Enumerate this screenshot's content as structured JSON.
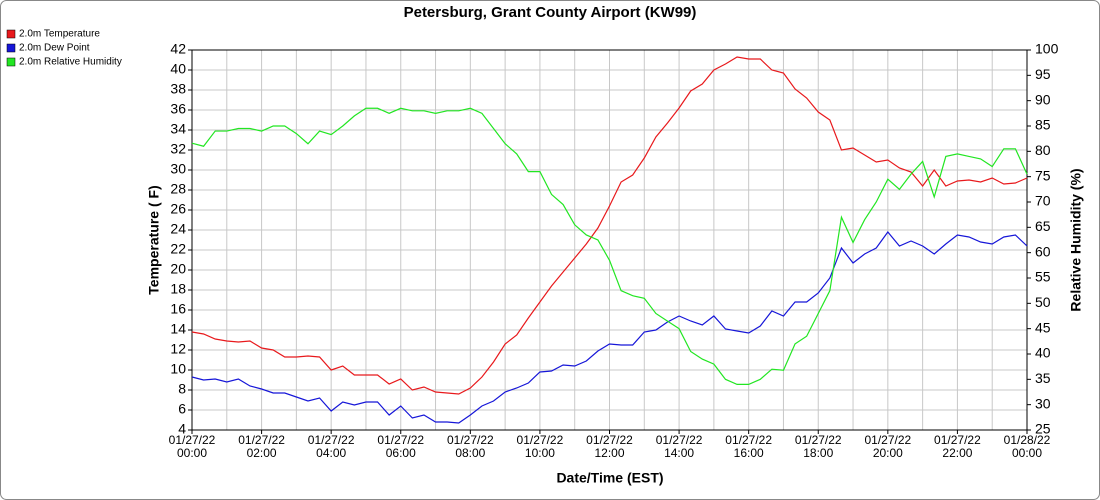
{
  "chart_data": {
    "type": "line",
    "title": "Petersburg, Grant County Airport (KW99)",
    "xlabel": "Date/Time (EST)",
    "ylabel": "Temperature ( F)",
    "y2label": "Relative Humidity (%)",
    "x": [
      "01/27/22 00:00",
      "01/27/22 00:20",
      "01/27/22 00:40",
      "01/27/22 01:00",
      "01/27/22 01:20",
      "01/27/22 01:40",
      "01/27/22 02:00",
      "01/27/22 02:20",
      "01/27/22 02:40",
      "01/27/22 03:00",
      "01/27/22 03:20",
      "01/27/22 03:40",
      "01/27/22 04:00",
      "01/27/22 04:20",
      "01/27/22 04:40",
      "01/27/22 05:00",
      "01/27/22 05:20",
      "01/27/22 05:40",
      "01/27/22 06:00",
      "01/27/22 06:20",
      "01/27/22 06:40",
      "01/27/22 07:00",
      "01/27/22 07:20",
      "01/27/22 07:40",
      "01/27/22 08:00",
      "01/27/22 08:20",
      "01/27/22 08:40",
      "01/27/22 09:00",
      "01/27/22 09:20",
      "01/27/22 09:40",
      "01/27/22 10:00",
      "01/27/22 10:20",
      "01/27/22 10:40",
      "01/27/22 11:00",
      "01/27/22 11:20",
      "01/27/22 11:40",
      "01/27/22 12:00",
      "01/27/22 12:20",
      "01/27/22 12:40",
      "01/27/22 13:00",
      "01/27/22 13:20",
      "01/27/22 13:40",
      "01/27/22 14:00",
      "01/27/22 14:20",
      "01/27/22 14:40",
      "01/27/22 15:00",
      "01/27/22 15:20",
      "01/27/22 15:40",
      "01/27/22 16:00",
      "01/27/22 16:20",
      "01/27/22 16:40",
      "01/27/22 17:00",
      "01/27/22 17:20",
      "01/27/22 17:40",
      "01/27/22 18:00",
      "01/27/22 18:20",
      "01/27/22 18:40",
      "01/27/22 19:00",
      "01/27/22 19:20",
      "01/27/22 19:40",
      "01/27/22 20:00",
      "01/27/22 20:20",
      "01/27/22 20:40",
      "01/27/22 21:00",
      "01/27/22 21:20",
      "01/27/22 21:40",
      "01/27/22 22:00",
      "01/27/22 22:20",
      "01/27/22 22:40",
      "01/27/22 23:00",
      "01/27/22 23:20",
      "01/27/22 23:40",
      "01/28/22 00:00"
    ],
    "series": [
      {
        "name": "2.0m Temperature",
        "color": "#e8191c",
        "axis": "y",
        "values": [
          13.8,
          13.6,
          13.1,
          12.9,
          12.8,
          12.9,
          12.2,
          12.0,
          11.3,
          11.3,
          11.4,
          11.3,
          10.0,
          10.4,
          9.5,
          9.5,
          9.5,
          8.6,
          9.1,
          8.0,
          8.3,
          7.8,
          7.7,
          7.6,
          8.2,
          9.3,
          10.8,
          12.6,
          13.5,
          15.2,
          16.8,
          18.4,
          19.8,
          21.2,
          22.6,
          24.2,
          26.4,
          28.8,
          29.5,
          31.2,
          33.3,
          34.7,
          36.2,
          37.9,
          38.6,
          40.0,
          40.6,
          41.3,
          41.1,
          41.1,
          40.0,
          39.7,
          38.1,
          37.2,
          35.8,
          35.0,
          32.0,
          32.2,
          31.5,
          30.8,
          31.0,
          30.2,
          29.8,
          28.4,
          30.0,
          28.4,
          28.9,
          29.0,
          28.8,
          29.2,
          28.6,
          28.7,
          29.2
        ]
      },
      {
        "name": "2.0m Dew Point",
        "color": "#1616d8",
        "axis": "y",
        "values": [
          9.3,
          9.0,
          9.1,
          8.8,
          9.1,
          8.4,
          8.1,
          7.7,
          7.7,
          7.3,
          6.9,
          7.2,
          5.9,
          6.8,
          6.5,
          6.8,
          6.8,
          5.5,
          6.4,
          5.2,
          5.5,
          4.8,
          4.8,
          4.7,
          5.5,
          6.4,
          6.9,
          7.8,
          8.2,
          8.7,
          9.8,
          9.9,
          10.5,
          10.4,
          10.9,
          11.9,
          12.6,
          12.5,
          12.5,
          13.8,
          14.0,
          14.8,
          15.4,
          14.9,
          14.5,
          15.4,
          14.1,
          13.9,
          13.7,
          14.4,
          15.9,
          15.4,
          16.8,
          16.8,
          17.7,
          19.2,
          22.2,
          20.7,
          21.6,
          22.2,
          23.8,
          22.4,
          22.9,
          22.4,
          21.6,
          22.6,
          23.5,
          23.3,
          22.8,
          22.6,
          23.3,
          23.5,
          22.4
        ]
      },
      {
        "name": "2.0m Relative Humidity",
        "color": "#22e622",
        "axis": "y2",
        "values": [
          81.6,
          81.0,
          84.0,
          84.0,
          84.5,
          84.5,
          84.0,
          85.0,
          85.0,
          83.5,
          81.5,
          84.0,
          83.3,
          85.0,
          87.0,
          88.5,
          88.5,
          87.5,
          88.5,
          88.0,
          88.0,
          87.5,
          88.0,
          88.0,
          88.5,
          87.5,
          84.5,
          81.5,
          79.5,
          76.0,
          76.0,
          71.5,
          69.5,
          65.5,
          63.5,
          62.5,
          58.5,
          52.5,
          51.5,
          51.0,
          48.0,
          46.5,
          45.0,
          40.5,
          39.0,
          38.0,
          35.0,
          34.0,
          34.0,
          35.0,
          37.0,
          36.8,
          42.0,
          43.5,
          48.0,
          52.5,
          67.0,
          62.0,
          66.5,
          70.0,
          74.5,
          72.5,
          75.5,
          78.0,
          71.0,
          79.0,
          79.5,
          79.0,
          78.5,
          77.0,
          80.5,
          80.5,
          75.5
        ]
      }
    ],
    "xlim": [
      "01/27/22 00:00",
      "01/28/22 00:00"
    ],
    "xticks": [
      "01/27/22 00:00",
      "01/27/22 02:00",
      "01/27/22 04:00",
      "01/27/22 06:00",
      "01/27/22 08:00",
      "01/27/22 10:00",
      "01/27/22 12:00",
      "01/27/22 14:00",
      "01/27/22 16:00",
      "01/27/22 18:00",
      "01/27/22 20:00",
      "01/27/22 22:00",
      "01/28/22 00:00"
    ],
    "ylim": [
      4,
      42
    ],
    "yticks": [
      4,
      6,
      8,
      10,
      12,
      14,
      16,
      18,
      20,
      22,
      24,
      26,
      28,
      30,
      32,
      34,
      36,
      38,
      40,
      42
    ],
    "y2lim": [
      25,
      100
    ],
    "y2ticks": [
      25,
      30,
      35,
      40,
      45,
      50,
      55,
      60,
      65,
      70,
      75,
      80,
      85,
      90,
      95,
      100
    ],
    "xgrid_step_minutes": 60,
    "grid": true,
    "legend": "top-left"
  }
}
